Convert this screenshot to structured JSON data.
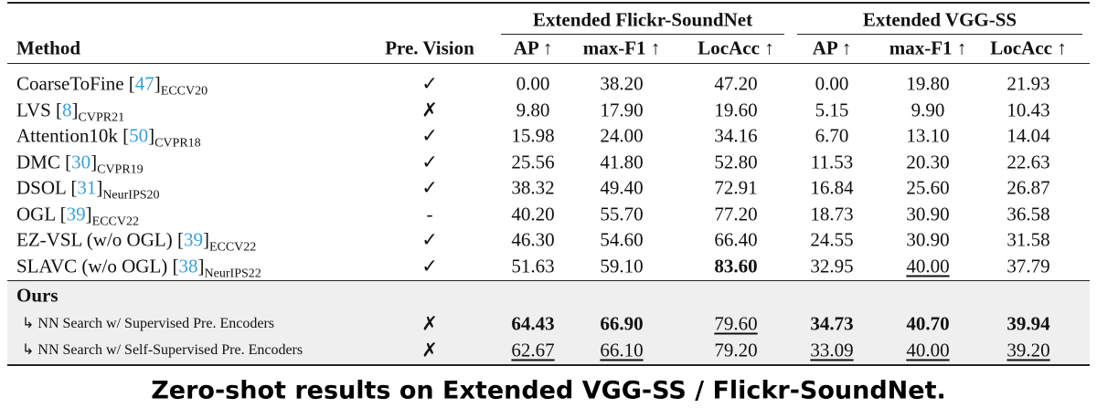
{
  "table": {
    "group_headers": [
      "Extended Flickr-SoundNet",
      "Extended VGG-SS"
    ],
    "columns": [
      "Method",
      "Pre. Vision",
      "AP ↑",
      "max-F1 ↑",
      "LocAcc ↑",
      "AP ↑",
      "max-F1 ↑",
      "LocAcc ↑"
    ],
    "rows": [
      {
        "method": "CoarseToFine",
        "cite": [
          "[",
          "47",
          "]"
        ],
        "venue": "ECCV20",
        "pre_vision": "✓",
        "values": [
          "0.00",
          "38.20",
          "47.20",
          "0.00",
          "19.80",
          "21.93"
        ]
      },
      {
        "method": "LVS",
        "cite": [
          "[",
          "8",
          "]"
        ],
        "venue": "CVPR21",
        "pre_vision": "✗",
        "values": [
          "9.80",
          "17.90",
          "19.60",
          "5.15",
          "9.90",
          "10.43"
        ]
      },
      {
        "method": "Attention10k",
        "cite": [
          "[",
          "50",
          "]"
        ],
        "venue": "CVPR18",
        "pre_vision": "✓",
        "values": [
          "15.98",
          "24.00",
          "34.16",
          "6.70",
          "13.10",
          "14.04"
        ]
      },
      {
        "method": "DMC",
        "cite": [
          "[",
          "30",
          "]"
        ],
        "venue": "CVPR19",
        "pre_vision": "✓",
        "values": [
          "25.56",
          "41.80",
          "52.80",
          "11.53",
          "20.30",
          "22.63"
        ]
      },
      {
        "method": "DSOL",
        "cite": [
          "[",
          "31",
          "]"
        ],
        "venue": "NeurIPS20",
        "pre_vision": "✓",
        "values": [
          "38.32",
          "49.40",
          "72.91",
          "16.84",
          "25.60",
          "26.87"
        ]
      },
      {
        "method": "OGL",
        "cite": [
          "[",
          "39",
          "]"
        ],
        "venue": "ECCV22",
        "pre_vision": "-",
        "values": [
          "40.20",
          "55.70",
          "77.20",
          "18.73",
          "30.90",
          "36.58"
        ]
      },
      {
        "method": "EZ-VSL (w/o OGL)",
        "cite": [
          "[",
          "39",
          "]"
        ],
        "venue": "ECCV22",
        "pre_vision": "✓",
        "values": [
          "46.30",
          "54.60",
          "66.40",
          "24.55",
          "30.90",
          "31.58"
        ]
      },
      {
        "method": "SLAVC (w/o OGL)",
        "cite": [
          "[",
          "38",
          "]"
        ],
        "venue": "NeurIPS22",
        "pre_vision": "✓",
        "values": [
          "51.63",
          "59.10",
          {
            "text": "83.60",
            "style": "bold"
          },
          "32.95",
          {
            "text": "40.00",
            "style": "underline"
          },
          "37.79"
        ]
      }
    ],
    "ours": {
      "label": "Ours",
      "rows": [
        {
          "method": "↳ NN Search w/ Supervised Pre. Encoders",
          "pre_vision": "✗",
          "values": [
            {
              "text": "64.43",
              "style": "bold"
            },
            {
              "text": "66.90",
              "style": "bold"
            },
            {
              "text": "79.60",
              "style": "underline"
            },
            {
              "text": "34.73",
              "style": "bold"
            },
            {
              "text": "40.70",
              "style": "bold"
            },
            {
              "text": "39.94",
              "style": "bold"
            }
          ]
        },
        {
          "method": "↳ NN Search w/ Self-Supervised Pre. Encoders",
          "pre_vision": "✗",
          "values": [
            {
              "text": "62.67",
              "style": "underline"
            },
            {
              "text": "66.10",
              "style": "underline"
            },
            "79.20",
            {
              "text": "33.09",
              "style": "underline"
            },
            {
              "text": "40.00",
              "style": "underline"
            },
            {
              "text": "39.20",
              "style": "underline"
            }
          ]
        }
      ]
    }
  },
  "caption": "Zero-shot results on Extended VGG-SS / Flickr-SoundNet."
}
